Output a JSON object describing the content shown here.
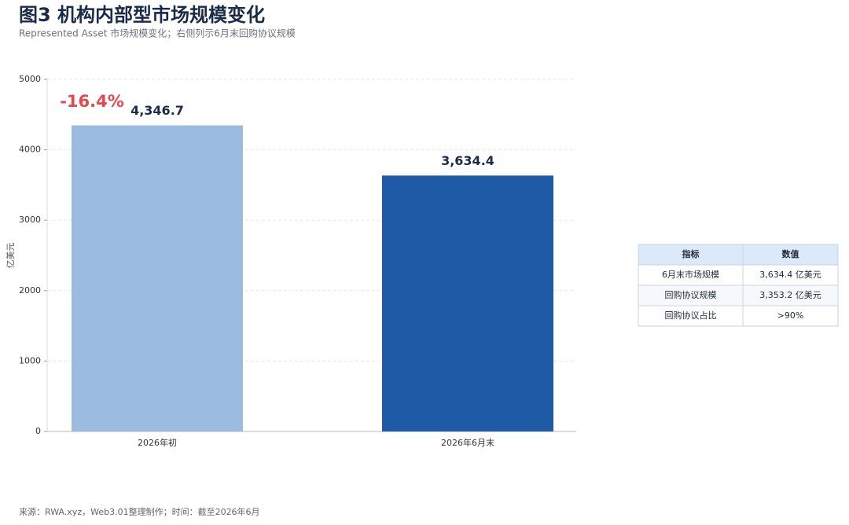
{
  "chart_data": {
    "type": "bar",
    "title": "图3 机构内部型市场规模变化",
    "subtitle": "Represented Asset 市场规模变化；右侧列示6月末回购协议规模",
    "categories": [
      "2026年初",
      "2026年6月末"
    ],
    "values": [
      4346.7,
      3634.4
    ],
    "value_labels": [
      "4,346.7",
      "3,634.4"
    ],
    "colors": [
      "#9bbbe0",
      "#1f5aa6"
    ],
    "ylabel": "亿美元",
    "ylim": [
      0,
      5000
    ],
    "yticks": [
      0,
      1000,
      2000,
      3000,
      4000,
      5000
    ],
    "grid": true,
    "annotation": "-16.4%"
  },
  "table": {
    "header": [
      "指标",
      "数值"
    ],
    "rows": [
      [
        "6月末市场规模",
        "3,634.4 亿美元"
      ],
      [
        "回购协议规模",
        "3,353.2 亿美元"
      ],
      [
        "回购协议占比",
        ">90%"
      ]
    ]
  },
  "source": "来源：RWA.xyz，Web3.01整理制作；时间：截至2026年6月"
}
